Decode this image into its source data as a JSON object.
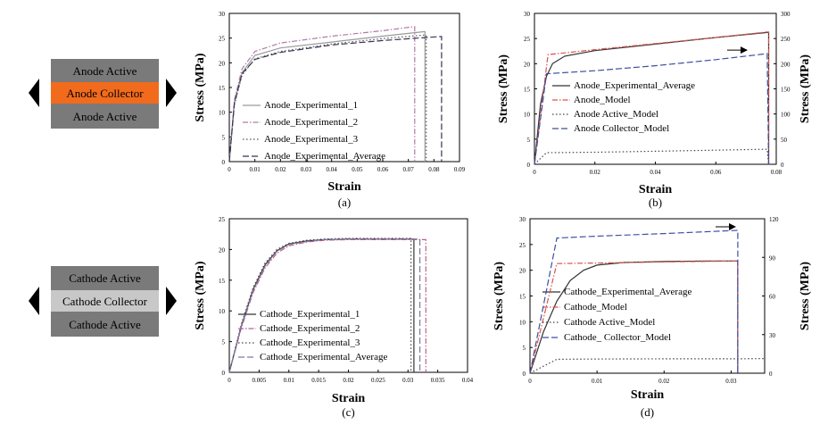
{
  "diagrams": [
    {
      "layers": [
        {
          "label": "Anode Active",
          "color": "#7a7a7a",
          "text_color": "#111111"
        },
        {
          "label": "Anode Collector",
          "color": "#f26b1d",
          "text_color": "#111111"
        },
        {
          "label": "Anode Active",
          "color": "#7a7a7a",
          "text_color": "#111111"
        }
      ]
    },
    {
      "layers": [
        {
          "label": "Cathode Active",
          "color": "#7a7a7a",
          "text_color": "#111111"
        },
        {
          "label": "Cathode Collector",
          "color": "#c8c8c8",
          "text_color": "#111111"
        },
        {
          "label": "Cathode Active",
          "color": "#7a7a7a",
          "text_color": "#111111"
        }
      ]
    }
  ],
  "chart_data": [
    {
      "type": "line",
      "panel_label": "(a)",
      "xlabel": "Strain",
      "ylabel": "Stress (MPa)",
      "xlim": [
        0,
        0.09
      ],
      "ylim": [
        0,
        30
      ],
      "xticks": [
        "0",
        "0.01",
        "0.02",
        "0.03",
        "0.04",
        "0.05",
        "0.06",
        "0.07",
        "0.08",
        "0.09"
      ],
      "yticks": [
        "0",
        "5",
        "10",
        "15",
        "20",
        "25",
        "30"
      ],
      "legend_position": "bottom-center",
      "series": [
        {
          "name": "Anode_Experimental_1",
          "style": "solid",
          "color": "#9a9a9a",
          "x": [
            0,
            0.002,
            0.005,
            0.01,
            0.02,
            0.04,
            0.06,
            0.076,
            0.0765,
            0.0765
          ],
          "y": [
            0,
            12,
            18,
            21.5,
            23.0,
            24.2,
            25.4,
            26.3,
            26.3,
            0
          ]
        },
        {
          "name": "Anode_Experimental_2",
          "style": "dashdot",
          "color": "#b07aa8",
          "x": [
            0,
            0.002,
            0.005,
            0.01,
            0.02,
            0.04,
            0.06,
            0.072,
            0.0725,
            0.0725
          ],
          "y": [
            0,
            12.5,
            18.8,
            22.3,
            24.0,
            25.4,
            26.5,
            27.3,
            27.3,
            0
          ]
        },
        {
          "name": "Anode_Experimental_3",
          "style": "dotted",
          "color": "#555555",
          "x": [
            0,
            0.002,
            0.005,
            0.01,
            0.02,
            0.04,
            0.06,
            0.076,
            0.077,
            0.077
          ],
          "y": [
            0,
            11.5,
            17.5,
            20.8,
            22.3,
            23.8,
            24.9,
            25.6,
            25.6,
            0
          ]
        },
        {
          "name": "Anode_Experimental_Average",
          "style": "dashed",
          "color": "#333355",
          "x": [
            0,
            0.002,
            0.005,
            0.01,
            0.02,
            0.04,
            0.06,
            0.082,
            0.083,
            0.083
          ],
          "y": [
            0,
            11.8,
            17.8,
            20.7,
            22.1,
            23.6,
            24.5,
            25.3,
            25.3,
            0
          ]
        }
      ]
    },
    {
      "type": "line",
      "panel_label": "(b)",
      "xlabel": "Strain",
      "ylabel": "Stress (MPa)",
      "ylabel_right": "Stress (MPa)",
      "xlim": [
        0,
        0.08
      ],
      "ylim": [
        0,
        30
      ],
      "ylim_right": [
        0,
        300
      ],
      "xticks": [
        "0",
        "0.02",
        "0.04",
        "0.06",
        "0.08"
      ],
      "yticks": [
        "0",
        "5",
        "10",
        "15",
        "20",
        "25",
        "30"
      ],
      "yticks_right": [
        "0",
        "50",
        "100",
        "150",
        "200",
        "250",
        "300"
      ],
      "legend_position": "center-right",
      "series": [
        {
          "name": "Anode_Experimental_Average",
          "style": "solid",
          "color": "#333333",
          "axis": "left",
          "x": [
            0,
            0.002,
            0.004,
            0.006,
            0.01,
            0.02,
            0.04,
            0.06,
            0.077,
            0.0775,
            0.0775
          ],
          "y": [
            0,
            12,
            17.5,
            20,
            21.5,
            22.6,
            23.9,
            25.2,
            26.2,
            26.2,
            0
          ]
        },
        {
          "name": "Anode_Model",
          "style": "dashdot",
          "color": "#d9534f",
          "axis": "left",
          "x": [
            0,
            0.0045,
            0.02,
            0.04,
            0.06,
            0.077,
            0.0775,
            0.0775
          ],
          "y": [
            0,
            21.8,
            22.8,
            24.0,
            25.2,
            26.3,
            26.3,
            0
          ]
        },
        {
          "name": "Anode Active_Model",
          "style": "dotted",
          "color": "#444444",
          "axis": "left",
          "x": [
            0,
            0.004,
            0.02,
            0.04,
            0.06,
            0.077,
            0.0775
          ],
          "y": [
            0,
            2.3,
            2.4,
            2.6,
            2.8,
            3.0,
            0
          ]
        },
        {
          "name": "Anode Collector_Model",
          "style": "dashed",
          "color": "#3d4f9f",
          "axis": "right",
          "x": [
            0,
            0.004,
            0.02,
            0.04,
            0.06,
            0.077,
            0.0775
          ],
          "y": [
            0,
            180,
            186,
            196,
            208,
            220,
            0
          ]
        }
      ]
    },
    {
      "type": "line",
      "panel_label": "(c)",
      "xlabel": "Strain",
      "ylabel": "Stress (MPa)",
      "xlim": [
        0,
        0.04
      ],
      "ylim": [
        0,
        25
      ],
      "xticks": [
        "0",
        "0.005",
        "0.01",
        "0.015",
        "0.02",
        "0.025",
        "0.03",
        "0.035",
        "0.04"
      ],
      "yticks": [
        "0",
        "5",
        "10",
        "15",
        "20",
        "25"
      ],
      "legend_position": "bottom-center",
      "series": [
        {
          "name": "Cathode_Experimental_1",
          "style": "solid",
          "color": "#333333",
          "x": [
            0,
            0.002,
            0.004,
            0.006,
            0.008,
            0.01,
            0.013,
            0.016,
            0.02,
            0.025,
            0.031,
            0.031
          ],
          "y": [
            0,
            7.5,
            13.5,
            17.5,
            19.8,
            20.9,
            21.4,
            21.6,
            21.7,
            21.7,
            21.7,
            0
          ]
        },
        {
          "name": "Cathode_Experimental_2",
          "style": "dashdot",
          "color": "#c0608a",
          "x": [
            0,
            0.002,
            0.004,
            0.006,
            0.008,
            0.01,
            0.013,
            0.016,
            0.02,
            0.025,
            0.033,
            0.033
          ],
          "y": [
            0,
            7.2,
            13,
            17,
            19.4,
            20.6,
            21.2,
            21.5,
            21.6,
            21.6,
            21.6,
            0
          ]
        },
        {
          "name": "Cathode_Experimental_3",
          "style": "dotted",
          "color": "#444444",
          "x": [
            0,
            0.002,
            0.004,
            0.006,
            0.008,
            0.01,
            0.013,
            0.016,
            0.02,
            0.025,
            0.0305,
            0.0305
          ],
          "y": [
            0,
            7.8,
            13.8,
            17.8,
            20.0,
            21.0,
            21.5,
            21.7,
            21.8,
            21.8,
            21.8,
            0
          ]
        },
        {
          "name": "Cathode_Experimental_Average",
          "style": "dashed",
          "color": "#7a7aa8",
          "x": [
            0,
            0.002,
            0.004,
            0.006,
            0.008,
            0.01,
            0.013,
            0.016,
            0.02,
            0.025,
            0.032,
            0.032
          ],
          "y": [
            0,
            7.4,
            13.3,
            17.3,
            19.7,
            20.8,
            21.3,
            21.6,
            21.7,
            21.7,
            21.7,
            0
          ]
        }
      ]
    },
    {
      "type": "line",
      "panel_label": "(d)",
      "xlabel": "Strain",
      "ylabel": "Stress (MPa)",
      "ylabel_right": "Stress (MPa)",
      "xlim": [
        0,
        0.035
      ],
      "ylim": [
        0,
        30
      ],
      "ylim_right": [
        0,
        120
      ],
      "xticks": [
        "0",
        "0.01",
        "0.02",
        "0.03"
      ],
      "xtick_values": [
        0,
        0.01,
        0.02,
        0.03
      ],
      "yticks": [
        "0",
        "5",
        "10",
        "15",
        "20",
        "25",
        "30"
      ],
      "yticks_right": [
        "0",
        "30",
        "60",
        "90",
        "120"
      ],
      "legend_position": "center-right",
      "series": [
        {
          "name": "Cathode_Experimental_Average",
          "style": "solid",
          "color": "#333333",
          "axis": "left",
          "x": [
            0,
            0.002,
            0.004,
            0.006,
            0.008,
            0.01,
            0.014,
            0.02,
            0.026,
            0.031,
            0.031
          ],
          "y": [
            0,
            8,
            14,
            18,
            20,
            21,
            21.5,
            21.7,
            21.8,
            21.8,
            0
          ]
        },
        {
          "name": "Cathode_Model",
          "style": "dashdot",
          "color": "#d9534f",
          "axis": "left",
          "x": [
            0,
            0.004,
            0.01,
            0.02,
            0.031,
            0.031
          ],
          "y": [
            0,
            21.3,
            21.4,
            21.6,
            21.8,
            0
          ]
        },
        {
          "name": "Cathode Active_Model",
          "style": "dotted",
          "color": "#444444",
          "axis": "left",
          "x": [
            0,
            0.004,
            0.01,
            0.02,
            0.031,
            0.035
          ],
          "y": [
            0,
            2.7,
            2.75,
            2.8,
            2.8,
            2.85
          ]
        },
        {
          "name": "Cathode_ Collector_Model",
          "style": "dashed",
          "color": "#3d4f9f",
          "axis": "right",
          "x": [
            0,
            0.004,
            0.01,
            0.02,
            0.031,
            0.031
          ],
          "y": [
            0,
            105,
            106.5,
            108.5,
            111,
            0
          ]
        }
      ]
    }
  ]
}
